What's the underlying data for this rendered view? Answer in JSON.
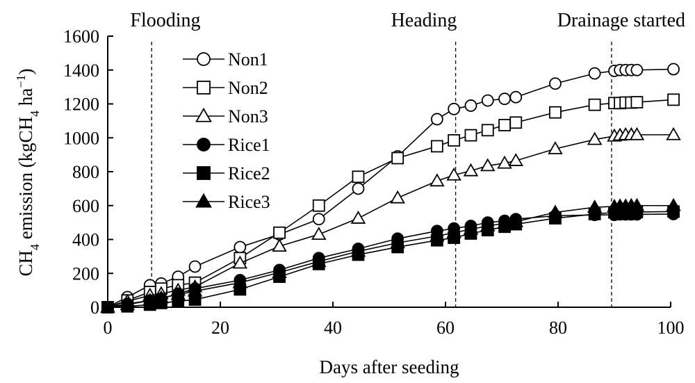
{
  "chart_data": {
    "type": "line",
    "xlabel": "Days after seeding",
    "ylabel": {
      "prefix": "CH",
      "sub": "4",
      "middle": " emission (kgCH",
      "sub2": "4",
      "middle2": " ha",
      "sup": "−1",
      "suffix": ")"
    },
    "xlim": [
      0,
      100
    ],
    "ylim": [
      0,
      1600
    ],
    "x_ticks": [
      0,
      20,
      40,
      60,
      80,
      100
    ],
    "y_ticks": [
      0,
      200,
      400,
      600,
      800,
      1000,
      1200,
      1400,
      1600
    ],
    "grid": false,
    "legend_position": "top-left",
    "stage_markers": [
      {
        "label": "Flooding",
        "x": 7.8
      },
      {
        "label": "Heading",
        "x": 61.8
      },
      {
        "label": "Drainage started",
        "x": 89.5
      }
    ],
    "series": [
      {
        "name": "Non1",
        "marker": "circle",
        "filled": false,
        "x": [
          0,
          3.5,
          7.5,
          9.5,
          12.5,
          15.5,
          23.5,
          30.5,
          37.5,
          44.5,
          51.5,
          58.5,
          61.5,
          64.5,
          67.5,
          70.5,
          72.5,
          79.5,
          86.5,
          90,
          91,
          92,
          93,
          94,
          100.5
        ],
        "y": [
          0,
          60,
          130,
          140,
          180,
          240,
          355,
          430,
          520,
          700,
          890,
          1110,
          1170,
          1190,
          1220,
          1230,
          1240,
          1320,
          1380,
          1395,
          1400,
          1400,
          1400,
          1400,
          1405
        ]
      },
      {
        "name": "Non2",
        "marker": "square",
        "filled": false,
        "x": [
          0,
          3.5,
          7.5,
          9.5,
          12.5,
          15.5,
          23.5,
          30.5,
          37.5,
          44.5,
          51.5,
          58.5,
          61.5,
          64.5,
          67.5,
          70.5,
          72.5,
          79.5,
          86.5,
          90,
          91,
          92,
          93,
          94,
          100.5
        ],
        "y": [
          0,
          40,
          90,
          110,
          130,
          145,
          290,
          440,
          600,
          770,
          880,
          950,
          985,
          1015,
          1045,
          1075,
          1090,
          1150,
          1195,
          1205,
          1205,
          1208,
          1208,
          1210,
          1225
        ]
      },
      {
        "name": "Non3",
        "marker": "triangle",
        "filled": false,
        "x": [
          0,
          3.5,
          7.5,
          9.5,
          12.5,
          15.5,
          23.5,
          30.5,
          37.5,
          44.5,
          51.5,
          58.5,
          61.5,
          64.5,
          67.5,
          70.5,
          72.5,
          79.5,
          86.5,
          90,
          91,
          92,
          93,
          94,
          100.5
        ],
        "y": [
          0,
          35,
          70,
          80,
          100,
          120,
          260,
          360,
          430,
          525,
          645,
          745,
          780,
          805,
          835,
          850,
          865,
          935,
          990,
          1010,
          1015,
          1018,
          1018,
          1018,
          1018
        ]
      },
      {
        "name": "Rice1",
        "marker": "circle",
        "filled": true,
        "x": [
          0,
          3.5,
          7.5,
          9.5,
          12.5,
          15.5,
          23.5,
          30.5,
          37.5,
          44.5,
          51.5,
          58.5,
          61.5,
          64.5,
          67.5,
          70.5,
          72.5,
          79.5,
          86.5,
          90,
          91,
          92,
          93,
          94,
          100.5
        ],
        "y": [
          0,
          20,
          40,
          50,
          80,
          110,
          160,
          220,
          290,
          345,
          405,
          450,
          465,
          480,
          500,
          510,
          520,
          540,
          545,
          545,
          548,
          548,
          548,
          548,
          550
        ]
      },
      {
        "name": "Rice2",
        "marker": "square",
        "filled": true,
        "x": [
          0,
          3.5,
          7.5,
          9.5,
          12.5,
          15.5,
          23.5,
          30.5,
          37.5,
          44.5,
          51.5,
          58.5,
          61.5,
          64.5,
          67.5,
          70.5,
          72.5,
          79.5,
          86.5,
          90,
          91,
          92,
          93,
          94,
          100.5
        ],
        "y": [
          0,
          5,
          15,
          25,
          35,
          45,
          105,
          180,
          255,
          310,
          355,
          395,
          410,
          435,
          455,
          475,
          490,
          525,
          550,
          560,
          560,
          562,
          562,
          562,
          565
        ]
      },
      {
        "name": "Rice3",
        "marker": "triangle",
        "filled": true,
        "x": [
          0,
          3.5,
          7.5,
          9.5,
          12.5,
          15.5,
          23.5,
          30.5,
          37.5,
          44.5,
          51.5,
          58.5,
          61.5,
          64.5,
          67.5,
          70.5,
          72.5,
          79.5,
          86.5,
          90,
          91,
          92,
          93,
          94,
          100.5
        ],
        "y": [
          0,
          15,
          40,
          55,
          75,
          95,
          145,
          205,
          270,
          330,
          380,
          420,
          440,
          460,
          480,
          495,
          505,
          560,
          590,
          595,
          598,
          598,
          600,
          600,
          600
        ]
      }
    ]
  }
}
